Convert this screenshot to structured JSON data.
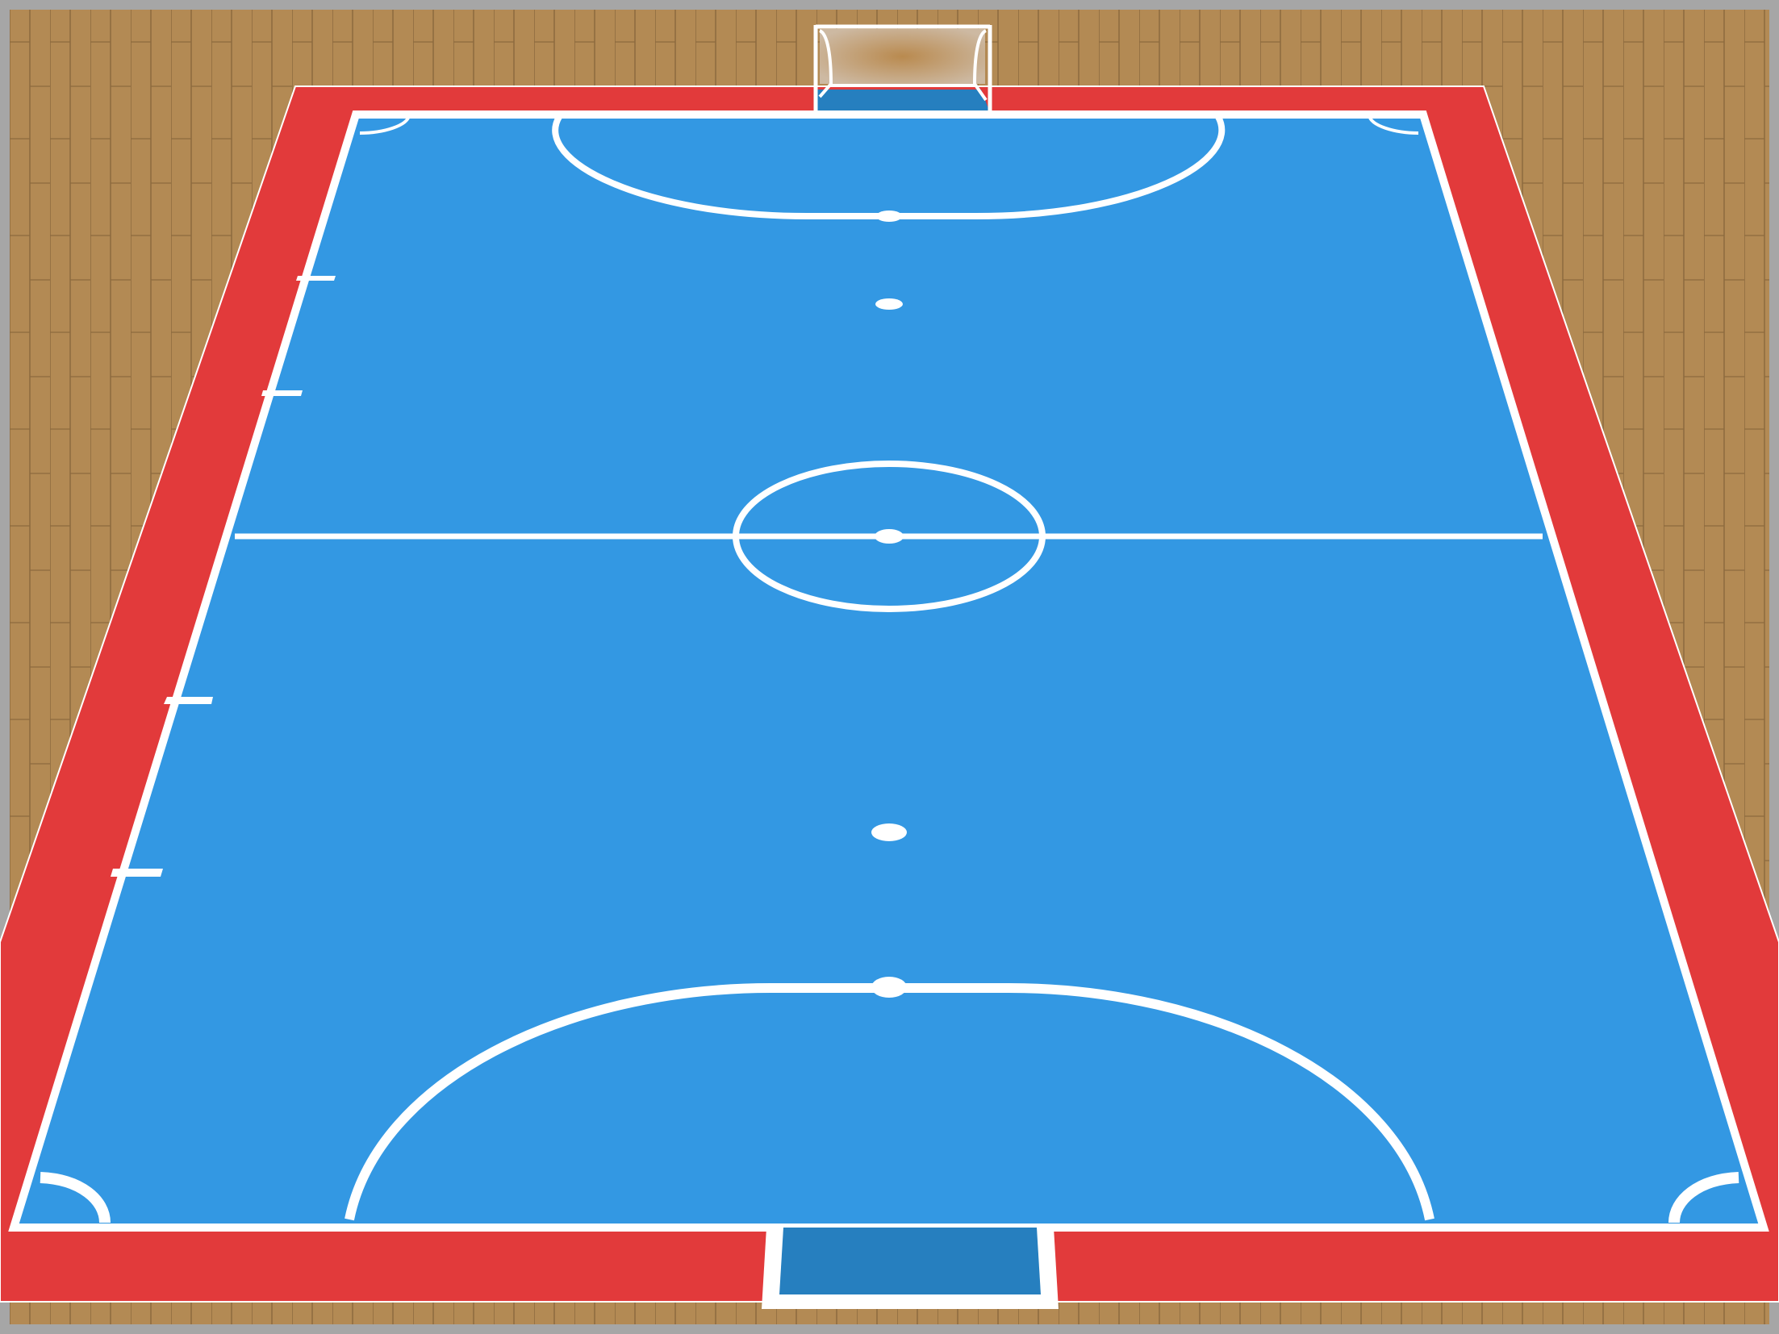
{
  "scene": {
    "title": "",
    "colors": {
      "frame": "#a6a6a6",
      "wood": "#b38a54",
      "wood_line": "#8d6a3e",
      "surround": "#e23a3b",
      "court": "#3398e3",
      "goal_area": "#267fbf",
      "lines": "#ffffff",
      "net": "#c8ad8c"
    },
    "elements": [
      "wooden-floor",
      "red-surround",
      "court-surface",
      "halfway-line",
      "center-circle",
      "center-spot",
      "far-penalty-area",
      "near-penalty-area",
      "far-penalty-spot",
      "near-penalty-spot",
      "far-second-penalty-spot",
      "near-second-penalty-spot",
      "corner-arcs",
      "substitution-zone-marks",
      "far-goal",
      "near-goal"
    ]
  }
}
